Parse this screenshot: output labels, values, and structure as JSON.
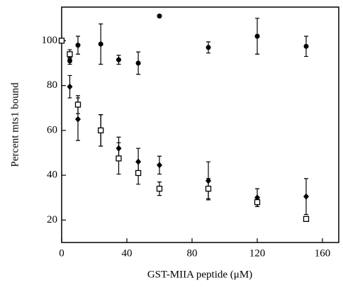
{
  "chart_data": {
    "type": "scatter",
    "x_label": "GST-MIIA peptide (μM)",
    "y_label": "Percent mts1 bound",
    "xlim": [
      0,
      170
    ],
    "ylim": [
      10,
      115
    ],
    "xticks": [
      0,
      40,
      80,
      120,
      160
    ],
    "yticks": [
      20,
      40,
      60,
      80,
      100
    ],
    "series": [
      {
        "marker": "circle",
        "color": "#000000",
        "x": [
          0,
          5,
          10,
          24,
          35,
          47,
          60,
          90,
          120,
          150
        ],
        "values": [
          100,
          91,
          98,
          98.5,
          91.5,
          90,
          111,
          97,
          102,
          97.5
        ],
        "errors": [
          null,
          1.5,
          4,
          9,
          2,
          5,
          null,
          2.5,
          8,
          4.5
        ]
      },
      {
        "marker": "diamond",
        "color": "#000000",
        "x": [
          5,
          10,
          24,
          35,
          47,
          60,
          90,
          120,
          150
        ],
        "values": [
          79.5,
          65,
          60,
          52,
          46,
          44.5,
          37.5,
          30,
          30.5
        ],
        "errors": [
          5,
          9.5,
          7,
          5,
          6,
          4,
          8.5,
          4,
          8
        ]
      },
      {
        "marker": "square",
        "color": "#000000",
        "x": [
          0,
          5,
          10,
          24,
          35,
          47,
          60,
          90,
          120,
          150
        ],
        "values": [
          100,
          94,
          71.5,
          60,
          47.5,
          41,
          34,
          34,
          28,
          20.5
        ],
        "errors": [
          null,
          2,
          4,
          7,
          7,
          5,
          3,
          4.5,
          2,
          1
        ]
      }
    ]
  }
}
